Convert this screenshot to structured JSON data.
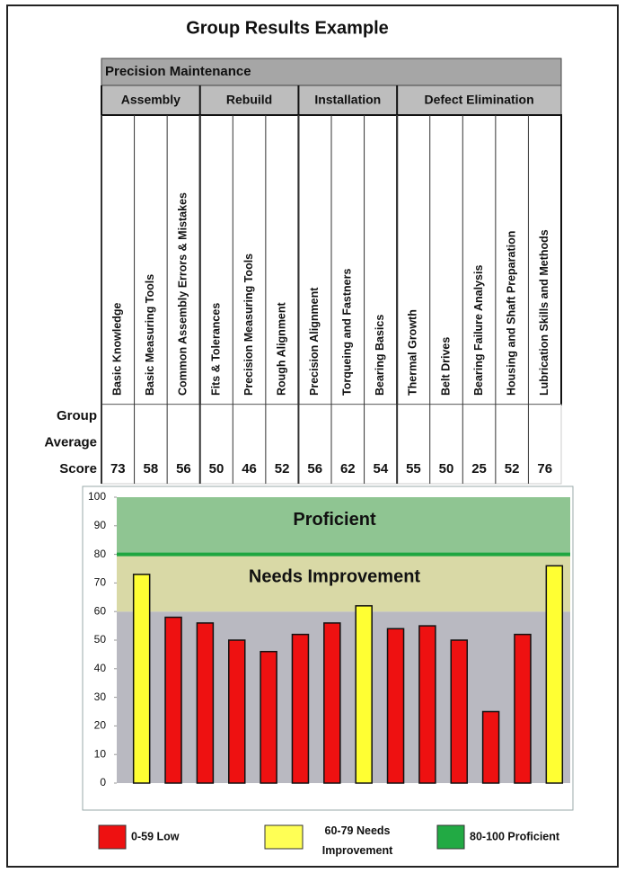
{
  "title": "Group Results Example",
  "table": {
    "group": "Precision Maintenance",
    "sections": [
      {
        "name": "Assembly",
        "skills": [
          "Basic Knowledge",
          "Basic Measuring Tools",
          "Common Assembly Errors & Mistakes"
        ]
      },
      {
        "name": "Rebuild",
        "skills": [
          "Fits & Tolerances",
          "Precision Measuring Tools",
          "Rough Alignment"
        ]
      },
      {
        "name": "Installation",
        "skills": [
          "Precision Alignment",
          "Torqueing and Fastners",
          "Bearing Basics"
        ]
      },
      {
        "name": "Defect Elimination",
        "skills": [
          "Thermal Growth",
          "Belt Drives",
          "Bearing Failure Analysis",
          "Housing and Shaft Preparation",
          "Lubrication Skills and Methods"
        ]
      }
    ],
    "row_label": [
      "Group",
      "Average",
      "Score"
    ]
  },
  "chart_data": {
    "type": "bar",
    "values": [
      73,
      58,
      56,
      50,
      46,
      52,
      56,
      62,
      54,
      55,
      50,
      25,
      52,
      76
    ],
    "colors": [
      "#ffff33",
      "#ee1111",
      "#ee1111",
      "#ee1111",
      "#ee1111",
      "#ee1111",
      "#ee1111",
      "#ffff33",
      "#ee1111",
      "#ee1111",
      "#ee1111",
      "#ee1111",
      "#ee1111",
      "#ffff33"
    ],
    "ylim": [
      0,
      100
    ],
    "yticks": [
      0,
      10,
      20,
      30,
      40,
      50,
      60,
      70,
      80,
      90,
      100
    ],
    "bands": [
      {
        "from": 0,
        "to": 60,
        "color": "#b9b9c1"
      },
      {
        "from": 60,
        "to": 80,
        "color": "#d9d9a6",
        "label": "Needs Improvement"
      },
      {
        "from": 80,
        "to": 100,
        "color": "#8fc592",
        "label": "Proficient"
      }
    ],
    "threshold": {
      "value": 80,
      "color": "#1fa640"
    },
    "legend": [
      {
        "label": "0-59 Low",
        "color": "#ee1111"
      },
      {
        "label": "60-79 Needs Improvement",
        "color": "#ffff55"
      },
      {
        "label": "80-100 Proficient",
        "color": "#22aa44"
      }
    ]
  }
}
